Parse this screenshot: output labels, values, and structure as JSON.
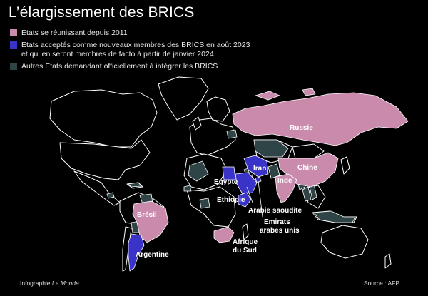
{
  "title": "L’élargissement des BRICS",
  "colors": {
    "brics": "#c98aab",
    "new_members": "#3a33c8",
    "candidates": "#2e4447",
    "land": "#000000",
    "border": "#ffffff"
  },
  "legend": [
    {
      "key": "brics",
      "label": "Etats se réunissant depuis 2011"
    },
    {
      "key": "new_members",
      "label": "Etats acceptés comme nouveaux membres des BRICS en août 2023\net qui en seront membres de facto à partir de janvier 2024"
    },
    {
      "key": "candidates",
      "label": "Autres Etats demandant officiellement à intégrer les BRICS"
    }
  ],
  "labels": {
    "russie": "Russie",
    "chine": "Chine",
    "inde": "Inde",
    "iran": "Iran",
    "egypte": "Egypte",
    "ethiopie": "Ethiopie",
    "arabie": "Arabie saoudite",
    "emirats_1": "Emirats",
    "emirats_2": "arabes unis",
    "afrique_1": "Afrique",
    "afrique_2": "du Sud",
    "bresil": "Brésil",
    "argentine": "Argentine"
  },
  "footer": {
    "credit_prefix": "Infographie ",
    "credit_source": "Le Monde",
    "source": "Source : AFP"
  }
}
